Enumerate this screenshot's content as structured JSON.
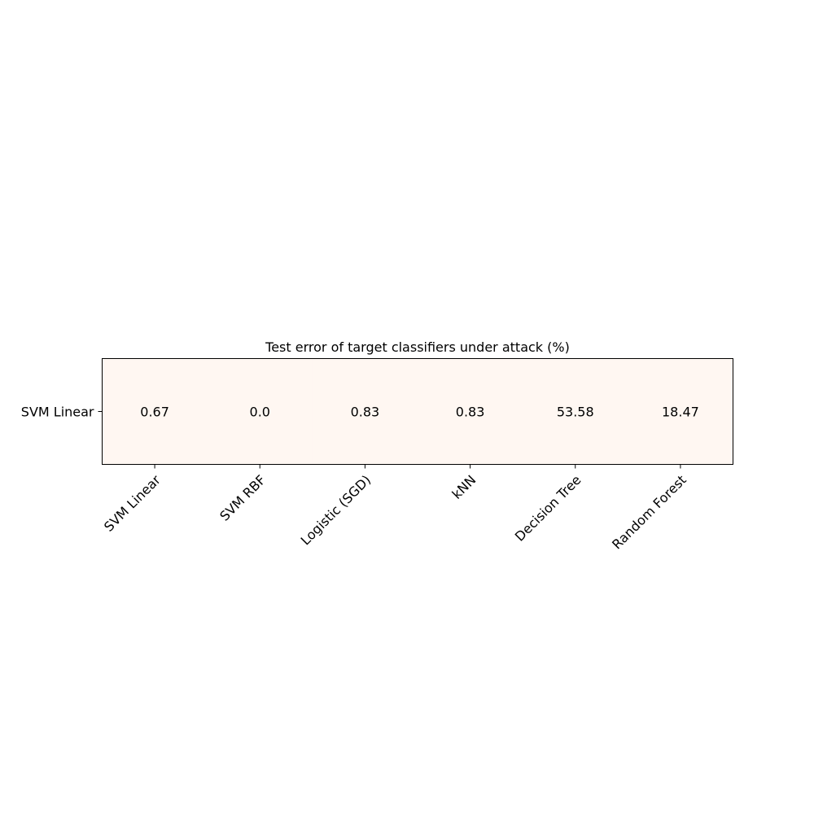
{
  "chart_data": {
    "type": "heatmap",
    "title": "Test error of target classifiers under attack (%)",
    "xlabel": "",
    "ylabel": "",
    "rows": [
      "SVM Linear"
    ],
    "columns": [
      "SVM Linear",
      "SVM RBF",
      "Logistic (SGD)",
      "kNN",
      "Decision Tree",
      "Random Forest"
    ],
    "values": [
      [
        0.67,
        0.0,
        0.83,
        0.83,
        53.58,
        18.47
      ]
    ],
    "value_labels": [
      [
        "0.67",
        "0.0",
        "0.83",
        "0.83",
        "53.58",
        "18.47"
      ]
    ],
    "cell_color": "#fff7f2",
    "grid": false,
    "legend": "none"
  }
}
